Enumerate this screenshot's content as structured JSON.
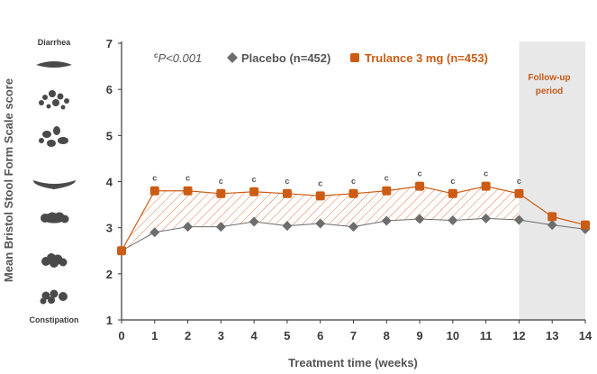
{
  "chart_data": {
    "type": "line",
    "xlabel": "Treatment time (weeks)",
    "ylabel": "Mean Bristol Stool Form Scale score",
    "xlim": [
      0,
      14
    ],
    "ylim": [
      1,
      7
    ],
    "x": [
      0,
      1,
      2,
      3,
      4,
      5,
      6,
      7,
      8,
      9,
      10,
      11,
      12,
      13,
      14
    ],
    "x_tick_labels": [
      "0",
      "1",
      "2",
      "3",
      "4",
      "5",
      "6",
      "7",
      "8",
      "9",
      "10",
      "11",
      "12",
      "13",
      "14"
    ],
    "y_tick_labels": [
      "1",
      "2",
      "3",
      "4",
      "5",
      "6",
      "7"
    ],
    "series": [
      {
        "name": "Placebo (n=452)",
        "marker": "diamond",
        "color": "#6d6d6d",
        "values": [
          2.5,
          2.9,
          3.02,
          3.02,
          3.13,
          3.04,
          3.09,
          3.02,
          3.15,
          3.19,
          3.16,
          3.2,
          3.17,
          3.06,
          2.97
        ]
      },
      {
        "name": "Trulance 3 mg (n=453)",
        "marker": "square",
        "color": "#cc5c14",
        "values": [
          2.5,
          3.8,
          3.8,
          3.74,
          3.78,
          3.74,
          3.69,
          3.74,
          3.8,
          3.9,
          3.74,
          3.9,
          3.74,
          3.24,
          3.06
        ]
      }
    ],
    "significance": {
      "symbol": "c",
      "weeks": [
        1,
        2,
        3,
        4,
        5,
        6,
        7,
        8,
        9,
        10,
        11,
        12
      ],
      "footnote_prefix": "c",
      "footnote_text": "P<0.001"
    },
    "follow_up": {
      "from_week": 12,
      "to_week": 14,
      "label_line1": "Follow-up",
      "label_line2": "period"
    },
    "scale_labels": {
      "top": "Diarrhea",
      "bottom": "Constipation"
    },
    "colors": {
      "placebo": "#6d6d6d",
      "trulance": "#cc5c14",
      "hatch": "#e07a4a",
      "followup_bg": "#e8e8e8",
      "axis": "#3a3a3a"
    }
  }
}
